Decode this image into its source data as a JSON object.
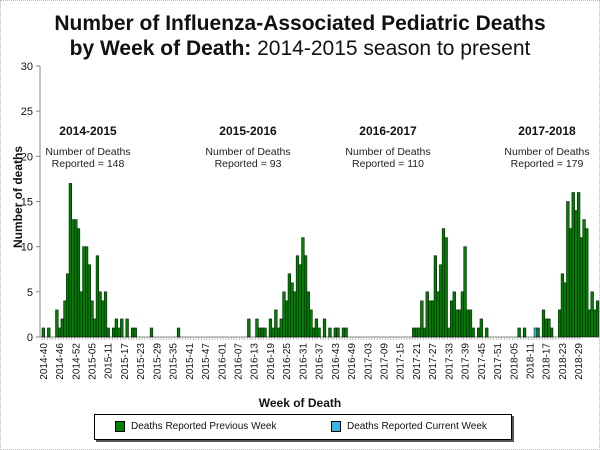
{
  "title_line1": "Number of Influenza-Associated Pediatric Deaths",
  "title_line2_bold": "by Week of Death:",
  "title_line2_rest": " 2014-2015 season to present",
  "colors": {
    "previous": "#008000",
    "current": "#33b5e5"
  },
  "legend": [
    {
      "label": "Deaths Reported Previous Week",
      "color": "#008000"
    },
    {
      "label": "Deaths Reported Current Week",
      "color": "#33b5e5"
    }
  ],
  "seasons": [
    {
      "label": "2014-2015",
      "line1": "Number of Deaths",
      "line2": "Reported = 148"
    },
    {
      "label": "2015-2016",
      "line1": "Number of Deaths",
      "line2": "Reported = 93"
    },
    {
      "label": "2016-2017",
      "line1": "Number of Deaths",
      "line2": "Reported = 110"
    },
    {
      "label": "2017-2018",
      "line1": "Number of Deaths",
      "line2": "Reported = 179"
    }
  ],
  "chart_data": {
    "type": "bar",
    "title": "Number of Influenza-Associated Pediatric Deaths by Week of Death: 2014-2015 season to present",
    "xlabel": "Week of Death",
    "ylabel": "Number of deaths",
    "ylim": [
      0,
      30
    ],
    "yticks": [
      0,
      5,
      10,
      15,
      20,
      25,
      30
    ],
    "grid": false,
    "legend_position": "bottom",
    "start_week": "2014-40",
    "xtick_labels": [
      "2014-40",
      "2014-46",
      "2014-52",
      "2015-05",
      "2015-11",
      "2015-17",
      "2015-23",
      "2015-29",
      "2015-35",
      "2015-41",
      "2015-47",
      "2016-01",
      "2016-07",
      "2016-13",
      "2016-19",
      "2016-25",
      "2016-31",
      "2016-37",
      "2016-43",
      "2016-49",
      "2017-03",
      "2017-09",
      "2017-15",
      "2017-21",
      "2017-27",
      "2017-33",
      "2017-39",
      "2017-45",
      "2017-51",
      "2018-05",
      "2018-11",
      "2018-17",
      "2018-23",
      "2018-29"
    ],
    "series": [
      {
        "name": "Deaths Reported Previous Week",
        "values": [
          1,
          0,
          1,
          0,
          0,
          3,
          1,
          2,
          4,
          7,
          17,
          13,
          13,
          12,
          5,
          10,
          10,
          8,
          4,
          2,
          9,
          5,
          4,
          5,
          1,
          0,
          1,
          2,
          1,
          2,
          0,
          2,
          0,
          1,
          1,
          0,
          0,
          0,
          0,
          0,
          1,
          0,
          0,
          0,
          0,
          0,
          0,
          0,
          0,
          0,
          1,
          0,
          0,
          0,
          0,
          0,
          0,
          0,
          0,
          0,
          0,
          0,
          0,
          0,
          0,
          0,
          0,
          0,
          0,
          0,
          0,
          0,
          0,
          0,
          0,
          0,
          2,
          0,
          0,
          2,
          1,
          1,
          1,
          0,
          2,
          1,
          3,
          1,
          2,
          5,
          4,
          7,
          6,
          5,
          9,
          8,
          11,
          9,
          5,
          3,
          1,
          2,
          1,
          0,
          2,
          0,
          1,
          0,
          1,
          1,
          0,
          1,
          1,
          0,
          0,
          0,
          0,
          0,
          0,
          0,
          0,
          0,
          0,
          0,
          0,
          0,
          0,
          0,
          0,
          0,
          0,
          0,
          0,
          0,
          0,
          0,
          0,
          1,
          1,
          1,
          4,
          1,
          5,
          4,
          4,
          9,
          5,
          8,
          12,
          11,
          1,
          4,
          5,
          3,
          3,
          5,
          10,
          3,
          3,
          1,
          0,
          1,
          2,
          0,
          1,
          0,
          0,
          0,
          0,
          0,
          0,
          0,
          0,
          0,
          0,
          0,
          1,
          0,
          1,
          0,
          0,
          0,
          0,
          1,
          0,
          3,
          2,
          2,
          1,
          0,
          0,
          3,
          7,
          6,
          15,
          12,
          16,
          14,
          16,
          11,
          13,
          12,
          3,
          5,
          3,
          4,
          0,
          4,
          0,
          1,
          1,
          1,
          2,
          1
        ],
        "color": "#008000"
      },
      {
        "name": "Deaths Reported Current Week",
        "values_note": "one current-week bar visible near 2018-14",
        "points": [
          {
            "index": 182,
            "value": 1
          }
        ],
        "color": "#33b5e5"
      }
    ]
  }
}
